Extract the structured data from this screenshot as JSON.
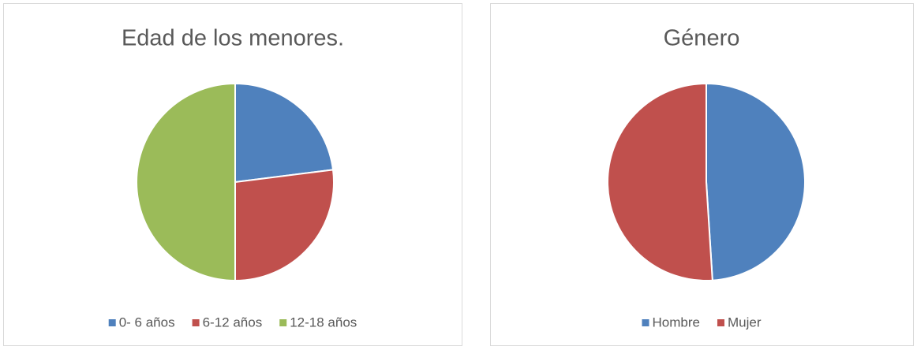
{
  "chart_data": [
    {
      "type": "pie",
      "title": "Edad de los menores.",
      "categories": [
        "0- 6 años",
        "6-12 años",
        "12-18 años"
      ],
      "values": [
        23,
        27,
        50
      ],
      "colors": [
        "#4f81bd",
        "#c0504d",
        "#9bbb59"
      ],
      "legend": "bottom"
    },
    {
      "type": "pie",
      "title": "Género",
      "categories": [
        "Hombre",
        "Mujer"
      ],
      "values": [
        49,
        51
      ],
      "colors": [
        "#4f81bd",
        "#c0504d"
      ],
      "legend": "bottom"
    }
  ]
}
